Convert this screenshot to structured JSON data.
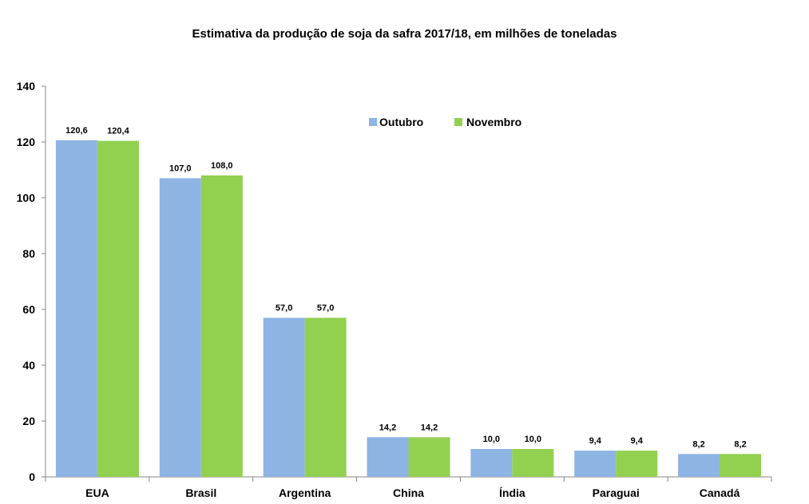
{
  "chart_data": {
    "type": "bar",
    "title": "Estimativa da produção de soja da safra 2017/18, em  milhões de toneladas",
    "categories": [
      "EUA",
      "Brasil",
      "Argentina",
      "China",
      "Índia",
      "Paraguai",
      "Canadá"
    ],
    "series": [
      {
        "name": "Outubro",
        "color": "#8eb4e3",
        "values": [
          120.6,
          107.0,
          57.0,
          14.2,
          10.0,
          9.4,
          8.2
        ],
        "labels": [
          "120,6",
          "107,0",
          "57,0",
          "14,2",
          "10,0",
          "9,4",
          "8,2"
        ]
      },
      {
        "name": "Novembro",
        "color": "#92d050",
        "values": [
          120.4,
          108.0,
          57.0,
          14.2,
          10.0,
          9.4,
          8.2
        ],
        "labels": [
          "120,4",
          "108,0",
          "57,0",
          "14,2",
          "10,0",
          "9,4",
          "8,2"
        ]
      }
    ],
    "ylim": [
      0,
      140
    ],
    "yticks": [
      "0",
      "20",
      "40",
      "60",
      "80",
      "100",
      "120",
      "140"
    ],
    "xlabel": "",
    "ylabel": "",
    "grid": false,
    "legend_position": "top-right"
  }
}
